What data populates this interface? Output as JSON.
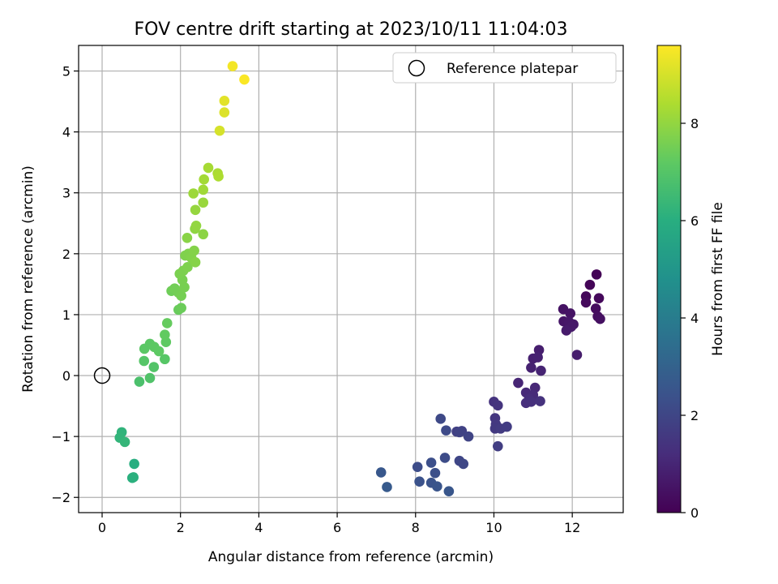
{
  "chart_data": {
    "type": "scatter",
    "title": "FOV centre drift starting at 2023/10/11 11:04:03",
    "xlabel": "Angular distance from reference (arcmin)",
    "ylabel": "Rotation from reference (arcmin)",
    "xlim": [
      -0.6,
      13.3
    ],
    "ylim": [
      -2.25,
      5.42
    ],
    "xticks": [
      0,
      2,
      4,
      6,
      8,
      10,
      12
    ],
    "yticks": [
      -2,
      -1,
      0,
      1,
      2,
      3,
      4,
      5
    ],
    "xtick_labels": [
      "0",
      "2",
      "4",
      "6",
      "8",
      "10",
      "12"
    ],
    "ytick_labels": [
      "−2",
      "−1",
      "0",
      "1",
      "2",
      "3",
      "4",
      "5"
    ],
    "grid": true,
    "legend": {
      "position": "top-right",
      "entries": [
        "Reference platepar"
      ]
    },
    "reference_point": {
      "x": 0,
      "y": 0
    },
    "colorbar": {
      "label": "Hours from first FF file",
      "range": [
        0,
        9.6
      ],
      "ticks": [
        0,
        2,
        4,
        6,
        8
      ],
      "tick_labels": [
        "0",
        "2",
        "4",
        "6",
        "8"
      ],
      "colormap": "viridis"
    },
    "points": [
      {
        "x": 12.62,
        "y": 1.66,
        "c": 0.05
      },
      {
        "x": 12.45,
        "y": 1.49,
        "c": 0.1
      },
      {
        "x": 12.35,
        "y": 1.3,
        "c": 0.15
      },
      {
        "x": 12.68,
        "y": 1.27,
        "c": 0.2
      },
      {
        "x": 12.35,
        "y": 1.2,
        "c": 0.25
      },
      {
        "x": 12.6,
        "y": 1.1,
        "c": 0.3
      },
      {
        "x": 12.65,
        "y": 0.97,
        "c": 0.35
      },
      {
        "x": 12.71,
        "y": 0.93,
        "c": 0.4
      },
      {
        "x": 11.77,
        "y": 1.09,
        "c": 0.45
      },
      {
        "x": 11.95,
        "y": 1.02,
        "c": 0.5
      },
      {
        "x": 11.78,
        "y": 0.89,
        "c": 0.55
      },
      {
        "x": 11.92,
        "y": 0.88,
        "c": 0.6
      },
      {
        "x": 12.03,
        "y": 0.84,
        "c": 0.62
      },
      {
        "x": 11.97,
        "y": 0.8,
        "c": 0.65
      },
      {
        "x": 11.85,
        "y": 0.74,
        "c": 0.7
      },
      {
        "x": 12.12,
        "y": 0.34,
        "c": 0.75
      },
      {
        "x": 11.15,
        "y": 0.42,
        "c": 0.8
      },
      {
        "x": 11.0,
        "y": 0.28,
        "c": 0.85
      },
      {
        "x": 11.12,
        "y": 0.3,
        "c": 0.88
      },
      {
        "x": 10.95,
        "y": 0.13,
        "c": 0.9
      },
      {
        "x": 11.2,
        "y": 0.08,
        "c": 0.95
      },
      {
        "x": 10.62,
        "y": -0.12,
        "c": 1.0
      },
      {
        "x": 11.05,
        "y": -0.2,
        "c": 1.05
      },
      {
        "x": 10.82,
        "y": -0.28,
        "c": 1.1
      },
      {
        "x": 11.0,
        "y": -0.32,
        "c": 1.15
      },
      {
        "x": 10.9,
        "y": -0.38,
        "c": 1.2
      },
      {
        "x": 10.82,
        "y": -0.45,
        "c": 1.25
      },
      {
        "x": 10.95,
        "y": -0.43,
        "c": 1.3
      },
      {
        "x": 11.18,
        "y": -0.42,
        "c": 1.35
      },
      {
        "x": 10.0,
        "y": -0.43,
        "c": 1.4
      },
      {
        "x": 10.1,
        "y": -0.49,
        "c": 1.45
      },
      {
        "x": 10.03,
        "y": -0.7,
        "c": 1.5
      },
      {
        "x": 10.05,
        "y": -0.8,
        "c": 1.55
      },
      {
        "x": 10.03,
        "y": -0.87,
        "c": 1.6
      },
      {
        "x": 10.17,
        "y": -0.87,
        "c": 1.65
      },
      {
        "x": 10.33,
        "y": -0.84,
        "c": 1.7
      },
      {
        "x": 10.1,
        "y": -1.16,
        "c": 1.75
      },
      {
        "x": 9.05,
        "y": -0.92,
        "c": 1.8
      },
      {
        "x": 9.18,
        "y": -0.91,
        "c": 1.85
      },
      {
        "x": 9.12,
        "y": -0.93,
        "c": 1.9
      },
      {
        "x": 9.35,
        "y": -1.0,
        "c": 1.95
      },
      {
        "x": 9.12,
        "y": -1.4,
        "c": 2.0
      },
      {
        "x": 9.22,
        "y": -1.45,
        "c": 2.05
      },
      {
        "x": 8.64,
        "y": -0.71,
        "c": 2.1
      },
      {
        "x": 8.78,
        "y": -0.9,
        "c": 2.15
      },
      {
        "x": 8.75,
        "y": -1.35,
        "c": 2.2
      },
      {
        "x": 8.05,
        "y": -1.5,
        "c": 2.25
      },
      {
        "x": 8.4,
        "y": -1.43,
        "c": 2.3
      },
      {
        "x": 8.5,
        "y": -1.6,
        "c": 2.35
      },
      {
        "x": 8.1,
        "y": -1.74,
        "c": 2.4
      },
      {
        "x": 8.4,
        "y": -1.76,
        "c": 2.45
      },
      {
        "x": 8.55,
        "y": -1.82,
        "c": 2.5
      },
      {
        "x": 8.85,
        "y": -1.9,
        "c": 2.55
      },
      {
        "x": 7.12,
        "y": -1.59,
        "c": 2.6
      },
      {
        "x": 7.27,
        "y": -1.83,
        "c": 2.7
      },
      {
        "x": 0.82,
        "y": -1.45,
        "c": 6.0
      },
      {
        "x": 0.77,
        "y": -1.68,
        "c": 6.05
      },
      {
        "x": 0.8,
        "y": -1.67,
        "c": 6.1
      },
      {
        "x": 0.5,
        "y": -0.93,
        "c": 6.2
      },
      {
        "x": 0.45,
        "y": -1.02,
        "c": 6.25
      },
      {
        "x": 0.58,
        "y": -1.09,
        "c": 6.3
      },
      {
        "x": 0.95,
        "y": -0.1,
        "c": 6.8
      },
      {
        "x": 1.22,
        "y": -0.04,
        "c": 6.9
      },
      {
        "x": 1.32,
        "y": 0.14,
        "c": 6.95
      },
      {
        "x": 1.07,
        "y": 0.24,
        "c": 7.0
      },
      {
        "x": 1.6,
        "y": 0.27,
        "c": 7.05
      },
      {
        "x": 1.08,
        "y": 0.44,
        "c": 7.1
      },
      {
        "x": 1.22,
        "y": 0.52,
        "c": 7.12
      },
      {
        "x": 1.33,
        "y": 0.47,
        "c": 7.15
      },
      {
        "x": 1.45,
        "y": 0.4,
        "c": 7.18
      },
      {
        "x": 1.63,
        "y": 0.55,
        "c": 7.2
      },
      {
        "x": 1.6,
        "y": 0.67,
        "c": 7.25
      },
      {
        "x": 1.66,
        "y": 0.86,
        "c": 7.3
      },
      {
        "x": 1.95,
        "y": 1.08,
        "c": 7.35
      },
      {
        "x": 2.02,
        "y": 1.11,
        "c": 7.4
      },
      {
        "x": 1.77,
        "y": 1.39,
        "c": 7.45
      },
      {
        "x": 1.85,
        "y": 1.43,
        "c": 7.5
      },
      {
        "x": 1.95,
        "y": 1.36,
        "c": 7.52
      },
      {
        "x": 2.02,
        "y": 1.31,
        "c": 7.55
      },
      {
        "x": 2.1,
        "y": 1.45,
        "c": 7.58
      },
      {
        "x": 2.05,
        "y": 1.57,
        "c": 7.6
      },
      {
        "x": 1.98,
        "y": 1.67,
        "c": 7.62
      },
      {
        "x": 2.07,
        "y": 1.72,
        "c": 7.65
      },
      {
        "x": 2.18,
        "y": 1.78,
        "c": 7.68
      },
      {
        "x": 2.12,
        "y": 1.97,
        "c": 7.7
      },
      {
        "x": 2.2,
        "y": 2.0,
        "c": 7.72
      },
      {
        "x": 2.28,
        "y": 1.93,
        "c": 7.75
      },
      {
        "x": 2.35,
        "y": 2.05,
        "c": 7.78
      },
      {
        "x": 2.38,
        "y": 1.86,
        "c": 7.8
      },
      {
        "x": 2.17,
        "y": 2.26,
        "c": 7.85
      },
      {
        "x": 2.58,
        "y": 2.32,
        "c": 7.9
      },
      {
        "x": 2.37,
        "y": 2.41,
        "c": 7.95
      },
      {
        "x": 2.4,
        "y": 2.46,
        "c": 8.0
      },
      {
        "x": 2.38,
        "y": 2.72,
        "c": 8.05
      },
      {
        "x": 2.58,
        "y": 2.84,
        "c": 8.1
      },
      {
        "x": 2.33,
        "y": 2.99,
        "c": 8.15
      },
      {
        "x": 2.58,
        "y": 3.05,
        "c": 8.2
      },
      {
        "x": 2.6,
        "y": 3.22,
        "c": 8.25
      },
      {
        "x": 2.71,
        "y": 3.41,
        "c": 8.3
      },
      {
        "x": 2.95,
        "y": 3.32,
        "c": 8.35
      },
      {
        "x": 2.97,
        "y": 3.27,
        "c": 8.4
      },
      {
        "x": 3.0,
        "y": 4.02,
        "c": 9.0
      },
      {
        "x": 3.12,
        "y": 4.32,
        "c": 9.1
      },
      {
        "x": 3.12,
        "y": 4.51,
        "c": 9.2
      },
      {
        "x": 3.33,
        "y": 5.08,
        "c": 9.45
      },
      {
        "x": 3.63,
        "y": 4.86,
        "c": 9.55
      }
    ]
  }
}
